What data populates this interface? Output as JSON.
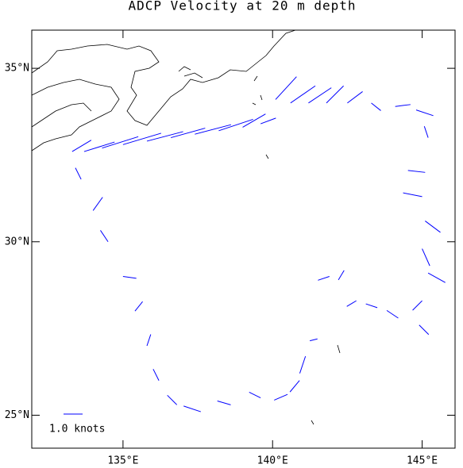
{
  "map": {
    "title": "ADCP Velocity at  20 m depth",
    "legend": "1.0 knots",
    "xlim": [
      131.95,
      146.1
    ],
    "ylim": [
      24.05,
      36.1
    ],
    "xticks": [
      {
        "value": 135,
        "label": "135°E"
      },
      {
        "value": 140,
        "label": "140°E"
      },
      {
        "value": 145,
        "label": "145°E"
      }
    ],
    "yticks": [
      {
        "value": 25,
        "label": "25°N"
      },
      {
        "value": 30,
        "label": "30°N"
      },
      {
        "value": 35,
        "label": "35°N"
      }
    ],
    "vector_color": "#0000ff",
    "vectors": [
      {
        "lon": 133.3,
        "lat": 32.6,
        "u": 1.0,
        "v": 0.6
      },
      {
        "lon": 133.7,
        "lat": 32.6,
        "u": 1.6,
        "v": 0.5
      },
      {
        "lon": 134.3,
        "lat": 32.7,
        "u": 1.9,
        "v": 0.6
      },
      {
        "lon": 135.0,
        "lat": 32.8,
        "u": 2.0,
        "v": 0.6
      },
      {
        "lon": 135.8,
        "lat": 32.9,
        "u": 1.9,
        "v": 0.5
      },
      {
        "lon": 136.6,
        "lat": 33.0,
        "u": 1.8,
        "v": 0.5
      },
      {
        "lon": 137.4,
        "lat": 33.1,
        "u": 1.9,
        "v": 0.5
      },
      {
        "lon": 138.2,
        "lat": 33.2,
        "u": 1.8,
        "v": 0.6
      },
      {
        "lon": 139.0,
        "lat": 33.3,
        "u": 1.2,
        "v": 0.7
      },
      {
        "lon": 139.6,
        "lat": 33.4,
        "u": 0.8,
        "v": 0.3
      },
      {
        "lon": 140.1,
        "lat": 34.1,
        "u": 1.1,
        "v": 1.2
      },
      {
        "lon": 140.6,
        "lat": 34.0,
        "u": 1.3,
        "v": 0.9
      },
      {
        "lon": 141.2,
        "lat": 34.0,
        "u": 1.2,
        "v": 0.8
      },
      {
        "lon": 141.8,
        "lat": 34.0,
        "u": 0.9,
        "v": 0.9
      },
      {
        "lon": 142.5,
        "lat": 34.0,
        "u": 0.8,
        "v": 0.6
      },
      {
        "lon": 143.3,
        "lat": 34.0,
        "u": 0.5,
        "v": -0.4
      },
      {
        "lon": 144.1,
        "lat": 33.9,
        "u": 0.8,
        "v": 0.1
      },
      {
        "lon": 144.8,
        "lat": 33.8,
        "u": 0.9,
        "v": -0.3
      },
      {
        "lon": 145.2,
        "lat": 33.0,
        "u": -0.2,
        "v": 0.6
      },
      {
        "lon": 145.1,
        "lat": 32.0,
        "u": -0.9,
        "v": 0.1
      },
      {
        "lon": 145.0,
        "lat": 31.3,
        "u": -1.0,
        "v": 0.2
      },
      {
        "lon": 145.1,
        "lat": 30.6,
        "u": 0.8,
        "v": -0.6
      },
      {
        "lon": 145.0,
        "lat": 29.8,
        "u": 0.4,
        "v": -0.9
      },
      {
        "lon": 145.2,
        "lat": 29.1,
        "u": 0.9,
        "v": -0.5
      },
      {
        "lon": 145.0,
        "lat": 28.3,
        "u": -0.5,
        "v": -0.5
      },
      {
        "lon": 144.9,
        "lat": 27.6,
        "u": 0.5,
        "v": -0.5
      },
      {
        "lon": 144.2,
        "lat": 27.8,
        "u": -0.6,
        "v": 0.4
      },
      {
        "lon": 143.5,
        "lat": 28.1,
        "u": -0.6,
        "v": 0.2
      },
      {
        "lon": 142.8,
        "lat": 28.3,
        "u": -0.5,
        "v": -0.3
      },
      {
        "lon": 142.2,
        "lat": 28.9,
        "u": 0.3,
        "v": 0.5
      },
      {
        "lon": 141.9,
        "lat": 29.0,
        "u": -0.6,
        "v": -0.2
      },
      {
        "lon": 141.5,
        "lat": 27.2,
        "u": -0.4,
        "v": -0.1
      },
      {
        "lon": 141.1,
        "lat": 26.7,
        "u": -0.3,
        "v": -0.9
      },
      {
        "lon": 140.9,
        "lat": 26.0,
        "u": -0.5,
        "v": -0.6
      },
      {
        "lon": 140.5,
        "lat": 25.6,
        "u": -0.7,
        "v": -0.3
      },
      {
        "lon": 139.6,
        "lat": 25.5,
        "u": -0.6,
        "v": 0.3
      },
      {
        "lon": 138.6,
        "lat": 25.3,
        "u": -0.7,
        "v": 0.2
      },
      {
        "lon": 137.6,
        "lat": 25.1,
        "u": -0.9,
        "v": 0.3
      },
      {
        "lon": 136.8,
        "lat": 25.3,
        "u": -0.5,
        "v": 0.5
      },
      {
        "lon": 136.2,
        "lat": 26.0,
        "u": -0.3,
        "v": 0.6
      },
      {
        "lon": 135.8,
        "lat": 27.0,
        "u": 0.2,
        "v": 0.6
      },
      {
        "lon": 135.4,
        "lat": 28.0,
        "u": 0.4,
        "v": 0.5
      },
      {
        "lon": 135.0,
        "lat": 29.0,
        "u": 0.7,
        "v": -0.1
      },
      {
        "lon": 134.5,
        "lat": 30.0,
        "u": -0.4,
        "v": 0.6
      },
      {
        "lon": 134.0,
        "lat": 30.9,
        "u": 0.5,
        "v": 0.7
      },
      {
        "lon": 133.6,
        "lat": 31.8,
        "u": -0.3,
        "v": 0.6
      }
    ]
  }
}
